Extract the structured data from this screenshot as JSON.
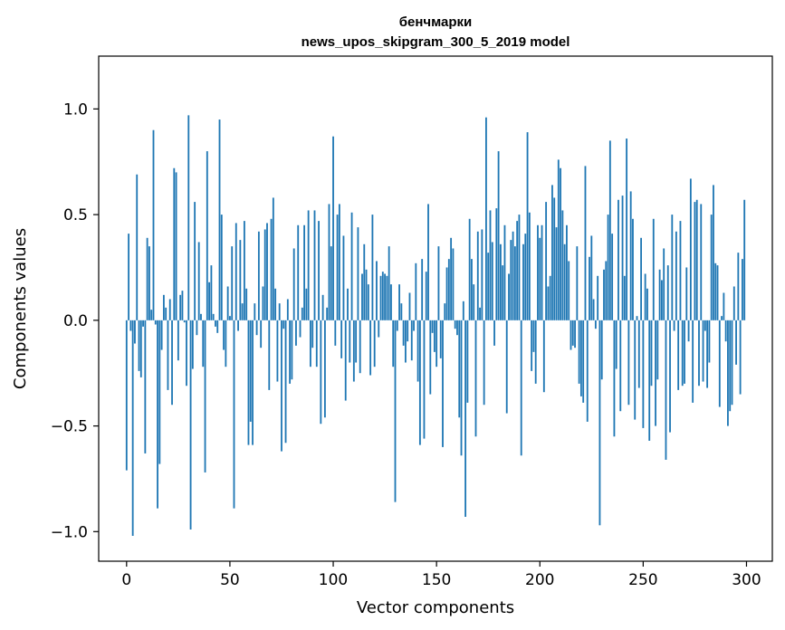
{
  "chart_data": {
    "type": "bar",
    "title": "бенчмарки",
    "subtitle": "news_upos_skipgram_300_5_2019 model",
    "xlabel": "Vector components",
    "ylabel": "Components values",
    "xlim": [
      -13.5,
      312.5
    ],
    "ylim": [
      -1.14,
      1.25
    ],
    "xticks": [
      0,
      50,
      100,
      150,
      200,
      250,
      300
    ],
    "yticks": [
      -1.0,
      -0.5,
      0.0,
      0.5,
      1.0
    ],
    "ytick_labels": [
      "−1.0",
      "−0.5",
      "0.0",
      "0.5",
      "1.0"
    ],
    "bar_color": "#1f77b4",
    "grid": false,
    "x": [
      0,
      1,
      2,
      3,
      4,
      5,
      6,
      7,
      8,
      9,
      10,
      11,
      12,
      13,
      14,
      15,
      16,
      17,
      18,
      19,
      20,
      21,
      22,
      23,
      24,
      25,
      26,
      27,
      28,
      29,
      30,
      31,
      32,
      33,
      34,
      35,
      36,
      37,
      38,
      39,
      40,
      41,
      42,
      43,
      44,
      45,
      46,
      47,
      48,
      49,
      50,
      51,
      52,
      53,
      54,
      55,
      56,
      57,
      58,
      59,
      60,
      61,
      62,
      63,
      64,
      65,
      66,
      67,
      68,
      69,
      70,
      71,
      72,
      73,
      74,
      75,
      76,
      77,
      78,
      79,
      80,
      81,
      82,
      83,
      84,
      85,
      86,
      87,
      88,
      89,
      90,
      91,
      92,
      93,
      94,
      95,
      96,
      97,
      98,
      99,
      100,
      101,
      102,
      103,
      104,
      105,
      106,
      107,
      108,
      109,
      110,
      111,
      112,
      113,
      114,
      115,
      116,
      117,
      118,
      119,
      120,
      121,
      122,
      123,
      124,
      125,
      126,
      127,
      128,
      129,
      130,
      131,
      132,
      133,
      134,
      135,
      136,
      137,
      138,
      139,
      140,
      141,
      142,
      143,
      144,
      145,
      146,
      147,
      148,
      149,
      150,
      151,
      152,
      153,
      154,
      155,
      156,
      157,
      158,
      159,
      160,
      161,
      162,
      163,
      164,
      165,
      166,
      167,
      168,
      169,
      170,
      171,
      172,
      173,
      174,
      175,
      176,
      177,
      178,
      179,
      180,
      181,
      182,
      183,
      184,
      185,
      186,
      187,
      188,
      189,
      190,
      191,
      192,
      193,
      194,
      195,
      196,
      197,
      198,
      199,
      200,
      201,
      202,
      203,
      204,
      205,
      206,
      207,
      208,
      209,
      210,
      211,
      212,
      213,
      214,
      215,
      216,
      217,
      218,
      219,
      220,
      221,
      222,
      223,
      224,
      225,
      226,
      227,
      228,
      229,
      230,
      231,
      232,
      233,
      234,
      235,
      236,
      237,
      238,
      239,
      240,
      241,
      242,
      243,
      244,
      245,
      246,
      247,
      248,
      249,
      250,
      251,
      252,
      253,
      254,
      255,
      256,
      257,
      258,
      259,
      260,
      261,
      262,
      263,
      264,
      265,
      266,
      267,
      268,
      269,
      270,
      271,
      272,
      273,
      274,
      275,
      276,
      277,
      278,
      279,
      280,
      281,
      282,
      283,
      284,
      285,
      286,
      287,
      288,
      289,
      290,
      291,
      292,
      293,
      294,
      295,
      296,
      297,
      298,
      299
    ],
    "values": [
      -0.71,
      0.41,
      -0.05,
      -1.02,
      -0.11,
      0.69,
      -0.24,
      -0.27,
      -0.03,
      -0.63,
      0.39,
      0.35,
      0.05,
      0.9,
      -0.02,
      -0.89,
      -0.68,
      -0.14,
      0.12,
      0.06,
      -0.33,
      0.1,
      -0.4,
      0.72,
      0.7,
      -0.19,
      0.12,
      0.14,
      -0.01,
      -0.31,
      0.97,
      -0.99,
      -0.23,
      0.56,
      -0.07,
      0.37,
      0.03,
      -0.22,
      -0.72,
      0.8,
      0.18,
      0.26,
      0.03,
      -0.03,
      -0.06,
      0.95,
      0.5,
      -0.14,
      -0.22,
      0.16,
      0.02,
      0.35,
      -0.89,
      0.46,
      -0.05,
      0.38,
      0.08,
      0.47,
      0.15,
      -0.59,
      -0.48,
      -0.59,
      0.08,
      -0.07,
      0.42,
      -0.13,
      0.16,
      0.43,
      0.46,
      -0.33,
      0.48,
      0.58,
      0.15,
      -0.29,
      0.08,
      -0.62,
      -0.04,
      -0.58,
      0.1,
      -0.3,
      -0.28,
      0.34,
      -0.12,
      0.45,
      -0.08,
      0.06,
      0.45,
      0.15,
      0.52,
      -0.22,
      -0.13,
      0.52,
      -0.22,
      0.47,
      -0.49,
      0.12,
      -0.46,
      0.06,
      0.55,
      0.35,
      0.87,
      -0.12,
      0.5,
      0.55,
      -0.18,
      0.4,
      -0.38,
      0.15,
      -0.2,
      0.51,
      -0.29,
      -0.2,
      0.44,
      -0.25,
      0.22,
      0.36,
      0.24,
      0.17,
      -0.26,
      0.5,
      -0.22,
      0.28,
      -0.08,
      0.21,
      0.23,
      0.22,
      0.21,
      0.35,
      0.17,
      -0.22,
      -0.86,
      -0.05,
      0.17,
      0.08,
      -0.12,
      -0.2,
      -0.1,
      0.13,
      -0.19,
      -0.05,
      0.27,
      -0.29,
      -0.59,
      0.29,
      -0.56,
      0.23,
      0.55,
      -0.35,
      -0.06,
      -0.15,
      -0.22,
      0.35,
      -0.18,
      -0.6,
      0.08,
      0.25,
      0.29,
      0.39,
      0.34,
      -0.04,
      -0.07,
      -0.46,
      -0.64,
      0.09,
      -0.93,
      -0.39,
      0.48,
      0.29,
      0.17,
      -0.55,
      0.42,
      0.06,
      0.43,
      -0.4,
      0.96,
      0.32,
      0.52,
      0.37,
      -0.12,
      0.53,
      0.8,
      0.36,
      0.26,
      0.45,
      -0.44,
      0.22,
      0.38,
      0.42,
      0.35,
      0.47,
      0.5,
      -0.64,
      0.36,
      0.41,
      0.89,
      0.51,
      -0.24,
      -0.15,
      -0.3,
      0.45,
      0.39,
      0.45,
      -0.34,
      0.56,
      0.16,
      0.21,
      0.64,
      0.58,
      0.44,
      0.76,
      0.72,
      0.52,
      0.36,
      0.45,
      0.28,
      -0.14,
      -0.12,
      -0.13,
      0.35,
      -0.3,
      -0.36,
      -0.39,
      0.73,
      -0.48,
      0.3,
      0.4,
      0.1,
      -0.04,
      0.21,
      -0.97,
      -0.28,
      0.24,
      0.28,
      0.5,
      0.85,
      0.41,
      -0.55,
      -0.23,
      0.57,
      -0.43,
      0.59,
      0.21,
      0.86,
      -0.4,
      0.61,
      0.48,
      -0.47,
      0.02,
      -0.32,
      0.39,
      -0.51,
      0.22,
      0.15,
      -0.57,
      -0.31,
      0.48,
      -0.5,
      -0.28,
      0.24,
      0.19,
      0.34,
      -0.66,
      0.26,
      -0.53,
      0.5,
      -0.05,
      0.42,
      -0.33,
      0.47,
      -0.31,
      -0.3,
      0.25,
      -0.1,
      0.67,
      -0.39,
      0.56,
      0.57,
      -0.31,
      0.55,
      -0.29,
      -0.05,
      -0.32,
      -0.2,
      0.5,
      0.64,
      0.27,
      0.26,
      -0.41,
      0.02,
      0.13,
      -0.1,
      -0.5,
      -0.43,
      -0.4,
      0.16,
      -0.21,
      0.32,
      -0.35,
      0.29,
      0.57
    ]
  }
}
